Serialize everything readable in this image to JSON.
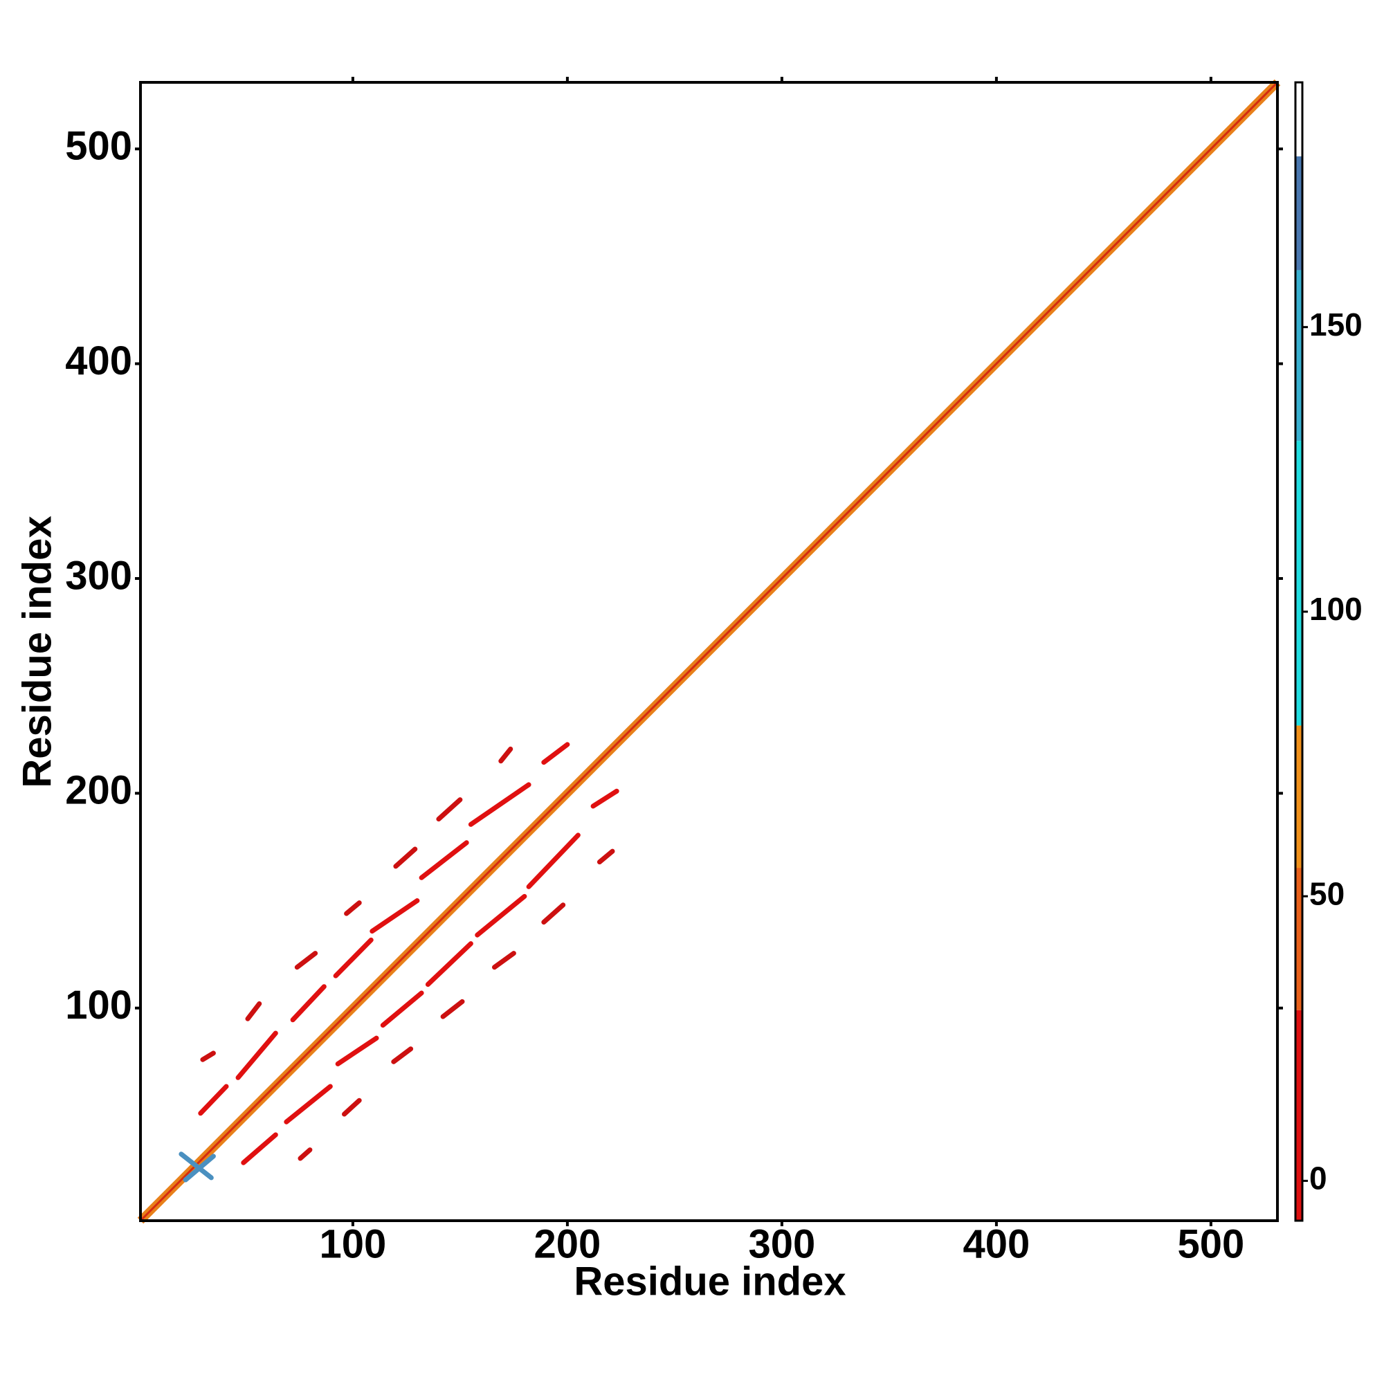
{
  "chart_data": {
    "type": "contact-map",
    "x_label": "Residue index",
    "y_label": "Residue index",
    "xlim": [
      1,
      531
    ],
    "ylim": [
      1,
      531
    ],
    "xticks": [
      100,
      200,
      300,
      400,
      500
    ],
    "yticks": [
      100,
      200,
      300,
      400,
      500
    ],
    "diagonal": {
      "x": [
        1,
        531
      ],
      "y": [
        1,
        531
      ],
      "color": "#e8801a",
      "core_color": "#d42a10"
    },
    "segments": [
      {
        "x": [
          29,
          41
        ],
        "y": [
          51,
          63.5
        ],
        "color": "#e01010"
      },
      {
        "x": [
          46.5,
          64
        ],
        "y": [
          67.6,
          88.3
        ],
        "color": "#e01010"
      },
      {
        "x": [
          72,
          86.6
        ],
        "y": [
          94.5,
          110
        ],
        "color": "#e01010"
      },
      {
        "x": [
          92,
          108.5
        ],
        "y": [
          115,
          131.7
        ],
        "color": "#e01010"
      },
      {
        "x": [
          109,
          130
        ],
        "y": [
          135.8,
          150
        ],
        "color": "#e01010"
      },
      {
        "x": [
          132,
          153
        ],
        "y": [
          160.7,
          177
        ],
        "color": "#e01010"
      },
      {
        "x": [
          155,
          182
        ],
        "y": [
          185.5,
          204
        ],
        "color": "#e01010"
      },
      {
        "x": [
          189,
          200
        ],
        "y": [
          214.4,
          222.7
        ],
        "color": "#e01010"
      },
      {
        "x": [
          49,
          64
        ],
        "y": [
          28,
          41
        ],
        "color": "#e01010"
      },
      {
        "x": [
          69,
          89.5
        ],
        "y": [
          47,
          63.5
        ],
        "color": "#e01010"
      },
      {
        "x": [
          93,
          111
        ],
        "y": [
          74,
          86
        ],
        "color": "#e01010"
      },
      {
        "x": [
          114,
          132
        ],
        "y": [
          92,
          107
        ],
        "color": "#e01010"
      },
      {
        "x": [
          135,
          155
        ],
        "y": [
          111,
          130
        ],
        "color": "#e01010"
      },
      {
        "x": [
          158,
          180
        ],
        "y": [
          134,
          152
        ],
        "color": "#e01010"
      },
      {
        "x": [
          182,
          205
        ],
        "y": [
          156.5,
          180.5
        ],
        "color": "#e01010"
      },
      {
        "x": [
          212,
          223
        ],
        "y": [
          194,
          201
        ],
        "color": "#e01010"
      },
      {
        "x": [
          30,
          35
        ],
        "y": [
          76,
          79
        ],
        "color": "#cc1010"
      },
      {
        "x": [
          51,
          56.4
        ],
        "y": [
          95,
          102
        ],
        "color": "#cc1010"
      },
      {
        "x": [
          74,
          82.5
        ],
        "y": [
          119,
          125.5
        ],
        "color": "#cc1010"
      },
      {
        "x": [
          97,
          103
        ],
        "y": [
          144,
          149
        ],
        "color": "#cc1010"
      },
      {
        "x": [
          120,
          129
        ],
        "y": [
          166,
          174
        ],
        "color": "#cc1010"
      },
      {
        "x": [
          140,
          150
        ],
        "y": [
          188,
          197
        ],
        "color": "#cc1010"
      },
      {
        "x": [
          169,
          173.5
        ],
        "y": [
          215,
          220.6
        ],
        "color": "#cc1010"
      },
      {
        "x": [
          75.5,
          80
        ],
        "y": [
          30,
          34
        ],
        "color": "#cc1010"
      },
      {
        "x": [
          96,
          103
        ],
        "y": [
          50.6,
          57
        ],
        "color": "#cc1010"
      },
      {
        "x": [
          119,
          127
        ],
        "y": [
          75,
          81
        ],
        "color": "#cc1010"
      },
      {
        "x": [
          142,
          151
        ],
        "y": [
          96,
          103
        ],
        "color": "#cc1010"
      },
      {
        "x": [
          166,
          175
        ],
        "y": [
          119,
          125.5
        ],
        "color": "#cc1010"
      },
      {
        "x": [
          189,
          198
        ],
        "y": [
          140,
          148
        ],
        "color": "#cc1010"
      },
      {
        "x": [
          215,
          221
        ],
        "y": [
          168,
          173
        ],
        "color": "#cc1010"
      },
      {
        "x": [
          20,
          34
        ],
        "y": [
          32,
          21
        ],
        "color": "#4a90c0"
      },
      {
        "x": [
          22,
          35
        ],
        "y": [
          20,
          31
        ],
        "color": "#4a90c0"
      }
    ],
    "colorbar": {
      "ylim": [
        -7,
        193
      ],
      "yticks": [
        0,
        50,
        100,
        150
      ],
      "bands": [
        {
          "from": -7,
          "to": 30,
          "color": "#dd1010"
        },
        {
          "from": 30,
          "to": 55,
          "color": "#e8601a"
        },
        {
          "from": 55,
          "to": 80,
          "color": "#f0901a"
        },
        {
          "from": 80,
          "to": 130,
          "color": "#22dde0"
        },
        {
          "from": 130,
          "to": 160,
          "color": "#3ab0d0"
        },
        {
          "from": 160,
          "to": 180,
          "color": "#4a78b0"
        },
        {
          "from": 180,
          "to": 193,
          "color": "#ffffff"
        }
      ]
    }
  }
}
